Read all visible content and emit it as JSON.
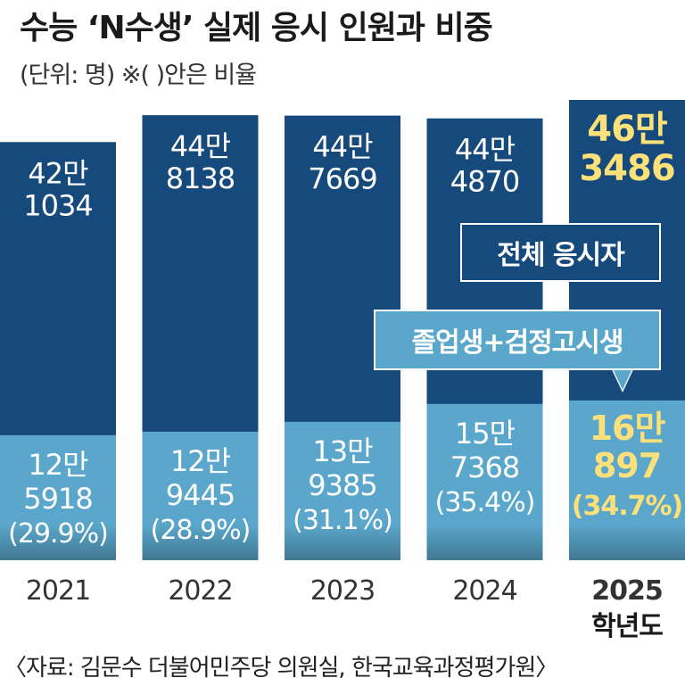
{
  "title": "수능 ‘N수생’ 실제 응시 인원과 비중",
  "subtitle": "(단위: 명)  ※( )안은 비율",
  "source": "〈자료: 김문수 더불어민주당 의원실, 한국교육과정평가원〉",
  "callouts": {
    "total_label": "전체 응시자",
    "grad_label": "졸업생+검정고시생"
  },
  "colors": {
    "total_bar": "#174a7c",
    "grad_bar": "#5aa7cb",
    "highlight_text": "#fce17a",
    "normal_text": "#ffffff"
  },
  "chart_data": {
    "type": "bar",
    "categories": [
      "2021",
      "2022",
      "2023",
      "2024",
      "2025"
    ],
    "category_suffix_last": "학년도",
    "series": [
      {
        "name": "전체 응시자",
        "values": [
          421034,
          448138,
          447669,
          444870,
          463486
        ],
        "labels_line1": [
          "42만",
          "44만",
          "44만",
          "44만",
          "46만"
        ],
        "labels_line2": [
          "1034",
          "8138",
          "7669",
          "4870",
          "3486"
        ]
      },
      {
        "name": "졸업생+검정고시생",
        "values": [
          125918,
          129445,
          139385,
          157368,
          160897
        ],
        "labels_line1": [
          "12만",
          "12만",
          "13만",
          "15만",
          "16만"
        ],
        "labels_line2": [
          "5918",
          "9445",
          "9385",
          "7368",
          "897"
        ],
        "percent_labels": [
          "(29.9%)",
          "(28.9%)",
          "(31.1%)",
          "(35.4%)",
          "(34.7%)"
        ],
        "percent": [
          29.9,
          28.9,
          31.1,
          35.4,
          34.7
        ]
      }
    ],
    "highlight_index": 4
  }
}
